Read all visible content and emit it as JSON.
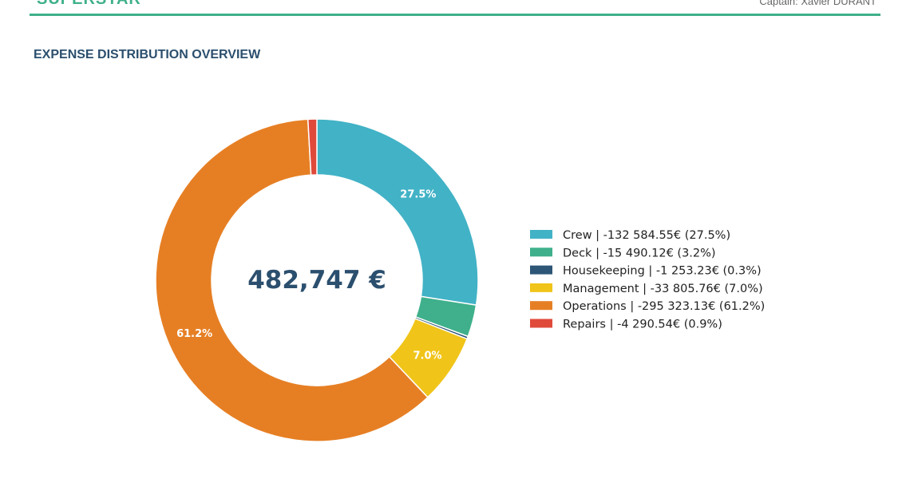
{
  "header": {
    "brand": "SUPERSTAR",
    "captain": "Captain: Xavier DURANT"
  },
  "section": {
    "title": "EXPENSE DISTRIBUTION OVERVIEW"
  },
  "chart_data": {
    "type": "pie",
    "variant": "donut",
    "total_label": "482,747 €",
    "legend_position": "right",
    "series": [
      {
        "name": "Crew",
        "value": -132584.55,
        "value_label": "-132 584.55€",
        "percent": 27.5,
        "percent_label": "27.5%",
        "color": "#42b2c6"
      },
      {
        "name": "Deck",
        "value": -15490.12,
        "value_label": "-15 490.12€",
        "percent": 3.2,
        "percent_label": "3.2%",
        "color": "#3fb08b"
      },
      {
        "name": "Housekeeping",
        "value": -1253.23,
        "value_label": "-1 253.23€",
        "percent": 0.3,
        "percent_label": "0.3%",
        "color": "#2c5576"
      },
      {
        "name": "Management",
        "value": -33805.76,
        "value_label": "-33 805.76€",
        "percent": 7.0,
        "percent_label": "7.0%",
        "color": "#f0c419"
      },
      {
        "name": "Operations",
        "value": -295323.13,
        "value_label": "-295 323.13€",
        "percent": 61.2,
        "percent_label": "61.2%",
        "color": "#e67f24"
      },
      {
        "name": "Repairs",
        "value": -4290.54,
        "value_label": "-4 290.54€",
        "percent": 0.9,
        "percent_label": "0.9%",
        "color": "#e04a3b"
      }
    ],
    "slice_labels_shown": [
      "Crew",
      "Management",
      "Operations"
    ]
  }
}
